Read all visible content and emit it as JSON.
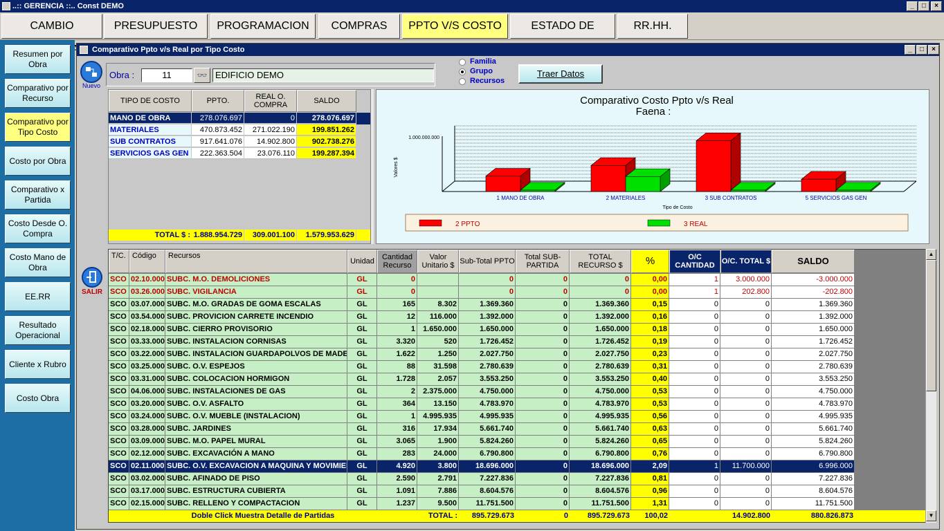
{
  "window": {
    "title": "..:: GERENCIA ::.. Const DEMO",
    "min": "_",
    "max": "□",
    "close": "×"
  },
  "menu": [
    {
      "label": "CAMBIO EMPRESA",
      "active": false
    },
    {
      "label": "PRESUPUESTO",
      "active": false
    },
    {
      "label": "PROGRAMACION",
      "active": false
    },
    {
      "label": "COMPRAS",
      "active": false
    },
    {
      "label": "PPTO V/S COSTO",
      "active": true
    },
    {
      "label": "ESTADO DE AVANCE",
      "active": false
    },
    {
      "label": "RR.HH.",
      "active": false
    }
  ],
  "sidebar": [
    {
      "label": "Resumen por Obra",
      "active": false
    },
    {
      "label": "Comparativo por Recurso",
      "active": false
    },
    {
      "label": "Comparativo por Tipo Costo",
      "active": true
    },
    {
      "label": "Costo por Obra",
      "active": false
    },
    {
      "label": "Comparativo x Partida",
      "active": false
    },
    {
      "label": "Costo Desde O. Compra",
      "active": false
    },
    {
      "label": "Costo Mano de Obra",
      "active": false
    },
    {
      "label": "EE.RR",
      "active": false
    },
    {
      "label": "Resultado Operacional",
      "active": false
    },
    {
      "label": "Cliente x Rubro",
      "active": false
    },
    {
      "label": "Costo Obra",
      "active": false
    }
  ],
  "child": {
    "title": "Comparativo Ppto v/s Real por Tipo Costo",
    "nuevo": "Nuevo",
    "salir": "SALIR"
  },
  "obra": {
    "label": "Obra :",
    "number": "11",
    "name": "EDIFICIO DEMO"
  },
  "radios": [
    {
      "label": "Familia",
      "selected": false
    },
    {
      "label": "Grupo",
      "selected": true
    },
    {
      "label": "Recursos",
      "selected": false
    }
  ],
  "traer": "Traer Datos",
  "summary": {
    "headers": [
      "TIPO DE COSTO",
      "PPTO.",
      "REAL O. COMPRA",
      "SALDO"
    ],
    "rows": [
      {
        "tipo": "MANO DE OBRA",
        "ppto": "278.076.697",
        "real": "0",
        "saldo": "278.076.697",
        "selected": true
      },
      {
        "tipo": "MATERIALES",
        "ppto": "470.873.452",
        "real": "271.022.190",
        "saldo": "199.851.262",
        "selected": false
      },
      {
        "tipo": "SUB CONTRATOS",
        "ppto": "917.641.076",
        "real": "14.902.800",
        "saldo": "902.738.276",
        "selected": false
      },
      {
        "tipo": "SERVICIOS GAS GEN",
        "ppto": "222.363.504",
        "real": "23.076.110",
        "saldo": "199.287.394",
        "selected": false
      }
    ],
    "total_label": "TOTAL $ :",
    "total_ppto": "1.888.954.729",
    "total_real": "309.001.100",
    "total_saldo": "1.579.953.629"
  },
  "chart_data": {
    "type": "bar",
    "title": "Comparativo Costo Ppto v/s Real",
    "subtitle": "Faena :",
    "xlabel": "Tipo de Costo",
    "ylabel": "Valores $",
    "categories": [
      "1 MANO DE OBRA",
      "2 MATERIALES",
      "3 SUB CONTRATOS",
      "5 SERVICIOS GAS GEN"
    ],
    "series": [
      {
        "name": "2 PPTO",
        "color": "#ff0000",
        "values": [
          278076697,
          470873452,
          917641076,
          222363504
        ]
      },
      {
        "name": "3 REAL",
        "color": "#00e000",
        "values": [
          0,
          271022190,
          14902800,
          23076110
        ]
      }
    ],
    "ylim": [
      0,
      1000000000
    ],
    "ytick_top": "1.000.000.000",
    "legend": "bottom",
    "grid": true
  },
  "detail": {
    "headers": [
      "T/C.",
      "Código",
      "Recursos",
      "Unidad",
      "Cantidad Recurso",
      "Valor Unitario $",
      "Sub-Total PPTO",
      "Total SUB-PARTIDA",
      "TOTAL RECURSO $",
      "%",
      "O/C CANTIDAD",
      "O/C. TOTAL $",
      "SALDO"
    ],
    "rows": [
      [
        "SCO",
        "02.10.000",
        "SUBC. M.O. DEMOLICIONES",
        "GL",
        "0",
        "",
        "0",
        "0",
        "0",
        "0,00",
        "1",
        "3.000.000",
        "-3.000.000",
        "red"
      ],
      [
        "SCO",
        "03.26.000",
        "SUBC. VIGILANCIA",
        "GL",
        "0",
        "",
        "0",
        "0",
        "0",
        "0,00",
        "1",
        "202.800",
        "-202.800",
        "red"
      ],
      [
        "SCO",
        "03.07.000",
        "SUBC. M.O. GRADAS DE GOMA ESCALAS",
        "GL",
        "165",
        "8.302",
        "1.369.360",
        "0",
        "1.369.360",
        "0,15",
        "0",
        "0",
        "1.369.360",
        ""
      ],
      [
        "SCO",
        "03.54.000",
        "SUBC. PROVICION CARRETE INCENDIO",
        "GL",
        "12",
        "116.000",
        "1.392.000",
        "0",
        "1.392.000",
        "0,16",
        "0",
        "0",
        "1.392.000",
        ""
      ],
      [
        "SCO",
        "02.18.000",
        "SUBC. CIERRO PROVISORIO",
        "GL",
        "1",
        "1.650.000",
        "1.650.000",
        "0",
        "1.650.000",
        "0,18",
        "0",
        "0",
        "1.650.000",
        ""
      ],
      [
        "SCO",
        "03.33.000",
        "SUBC. INSTALACION CORNISAS",
        "GL",
        "3.320",
        "520",
        "1.726.452",
        "0",
        "1.726.452",
        "0,19",
        "0",
        "0",
        "1.726.452",
        ""
      ],
      [
        "SCO",
        "03.22.000",
        "SUBC. INSTALACION GUARDAPOLVOS DE MADERA",
        "GL",
        "1.622",
        "1.250",
        "2.027.750",
        "0",
        "2.027.750",
        "0,23",
        "0",
        "0",
        "2.027.750",
        ""
      ],
      [
        "SCO",
        "03.25.000",
        "SUBC. O.V. ESPEJOS",
        "GL",
        "88",
        "31.598",
        "2.780.639",
        "0",
        "2.780.639",
        "0,31",
        "0",
        "0",
        "2.780.639",
        ""
      ],
      [
        "SCO",
        "03.31.000",
        "SUBC. COLOCACION HORMIGON",
        "GL",
        "1.728",
        "2.057",
        "3.553.250",
        "0",
        "3.553.250",
        "0,40",
        "0",
        "0",
        "3.553.250",
        ""
      ],
      [
        "SCO",
        "04.06.000",
        "SUBC. INSTALACIONES DE GAS",
        "GL",
        "2",
        "2.375.000",
        "4.750.000",
        "0",
        "4.750.000",
        "0,53",
        "0",
        "0",
        "4.750.000",
        ""
      ],
      [
        "SCO",
        "03.20.000",
        "SUBC. O.V. ASFALTO",
        "GL",
        "364",
        "13.150",
        "4.783.970",
        "0",
        "4.783.970",
        "0,53",
        "0",
        "0",
        "4.783.970",
        ""
      ],
      [
        "SCO",
        "03.24.000",
        "SUBC. O.V. MUEBLE (INSTALACION)",
        "GL",
        "1",
        "4.995.935",
        "4.995.935",
        "0",
        "4.995.935",
        "0,56",
        "0",
        "0",
        "4.995.935",
        ""
      ],
      [
        "SCO",
        "03.28.000",
        "SUBC. JARDINES",
        "GL",
        "316",
        "17.934",
        "5.661.740",
        "0",
        "5.661.740",
        "0,63",
        "0",
        "0",
        "5.661.740",
        ""
      ],
      [
        "SCO",
        "03.09.000",
        "SUBC. M.O. PAPEL MURAL",
        "GL",
        "3.065",
        "1.900",
        "5.824.260",
        "0",
        "5.824.260",
        "0,65",
        "0",
        "0",
        "5.824.260",
        ""
      ],
      [
        "SCO",
        "02.12.000",
        "SUBC. EXCAVACIÓN A MANO",
        "GL",
        "283",
        "24.000",
        "6.790.800",
        "0",
        "6.790.800",
        "0,76",
        "0",
        "0",
        "6.790.800",
        ""
      ],
      [
        "SCO",
        "02.11.000",
        "SUBC. O.V.  EXCAVACION  A MAQUINA Y MOVIMIENTO",
        "GL",
        "4.920",
        "3.800",
        "18.696.000",
        "0",
        "18.696.000",
        "2,09",
        "1",
        "11.700.000",
        "6.996.000",
        "sel"
      ],
      [
        "SCO",
        "03.02.000",
        "SUBC. AFINADO DE PISO",
        "GL",
        "2.590",
        "2.791",
        "7.227.836",
        "0",
        "7.227.836",
        "0,81",
        "0",
        "0",
        "7.227.836",
        ""
      ],
      [
        "SCO",
        "03.17.000",
        "SUBC. ESTRUCTURA CUBIERTA",
        "GL",
        "1.091",
        "7.886",
        "8.604.576",
        "0",
        "8.604.576",
        "0,96",
        "0",
        "0",
        "8.604.576",
        ""
      ],
      [
        "SCO",
        "02.15.000",
        "SUBC. RELLENO Y COMPACTACION",
        "GL",
        "1.237",
        "9.500",
        "11.751.500",
        "0",
        "11.751.500",
        "1,31",
        "0",
        "0",
        "11.751.500",
        ""
      ]
    ],
    "footer": {
      "note": "Doble Click Muestra Detalle de Partidas",
      "total_label": "TOTAL :",
      "subtotal": "895.729.673",
      "subpartida": "0",
      "recurso": "895.729.673",
      "pct": "100,02",
      "oc_total": "14.902.800",
      "saldo": "880.826.873"
    }
  }
}
